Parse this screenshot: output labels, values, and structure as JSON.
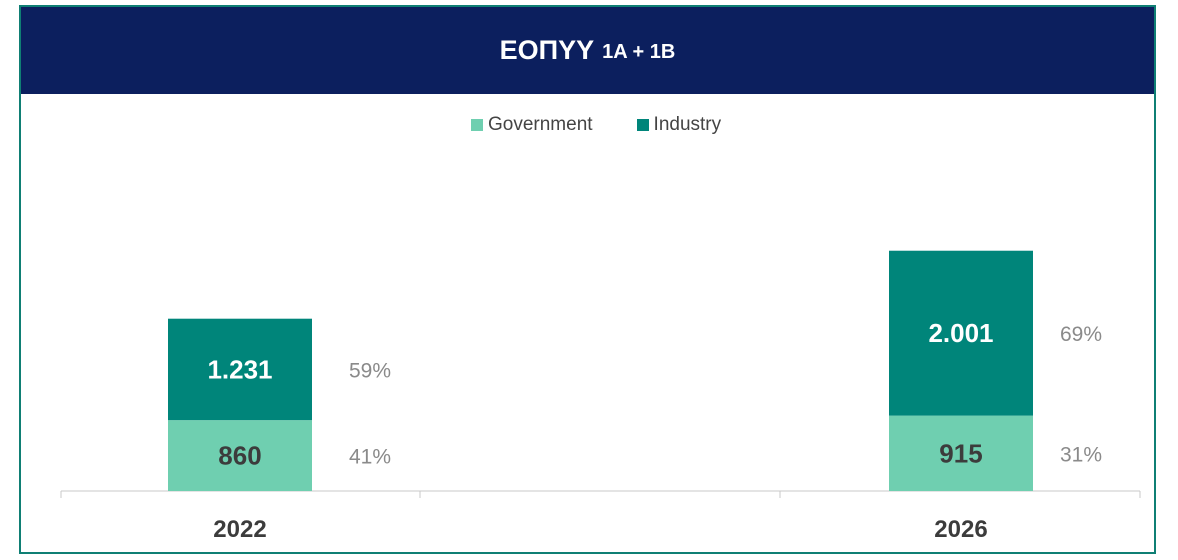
{
  "header": {
    "title_main": "ΕΟΠΥΥ",
    "title_sub": "1A + 1B"
  },
  "colors": {
    "header_bg": "#0c1f5e",
    "border": "#0f7f74",
    "government": "#6fcfb0",
    "industry": "#00857a"
  },
  "chart_data": {
    "type": "bar",
    "stacked": true,
    "categories": [
      "2022",
      "2026"
    ],
    "series": [
      {
        "name": "Government",
        "values": [
          860,
          915
        ],
        "labels": [
          "860",
          "915"
        ],
        "shares": [
          "41%",
          "31%"
        ]
      },
      {
        "name": "Industry",
        "values": [
          1231,
          2001
        ],
        "labels": [
          "1.231",
          "2.001"
        ],
        "shares": [
          "59%",
          "69%"
        ]
      }
    ],
    "legend_position": "top-center",
    "grid": false
  }
}
